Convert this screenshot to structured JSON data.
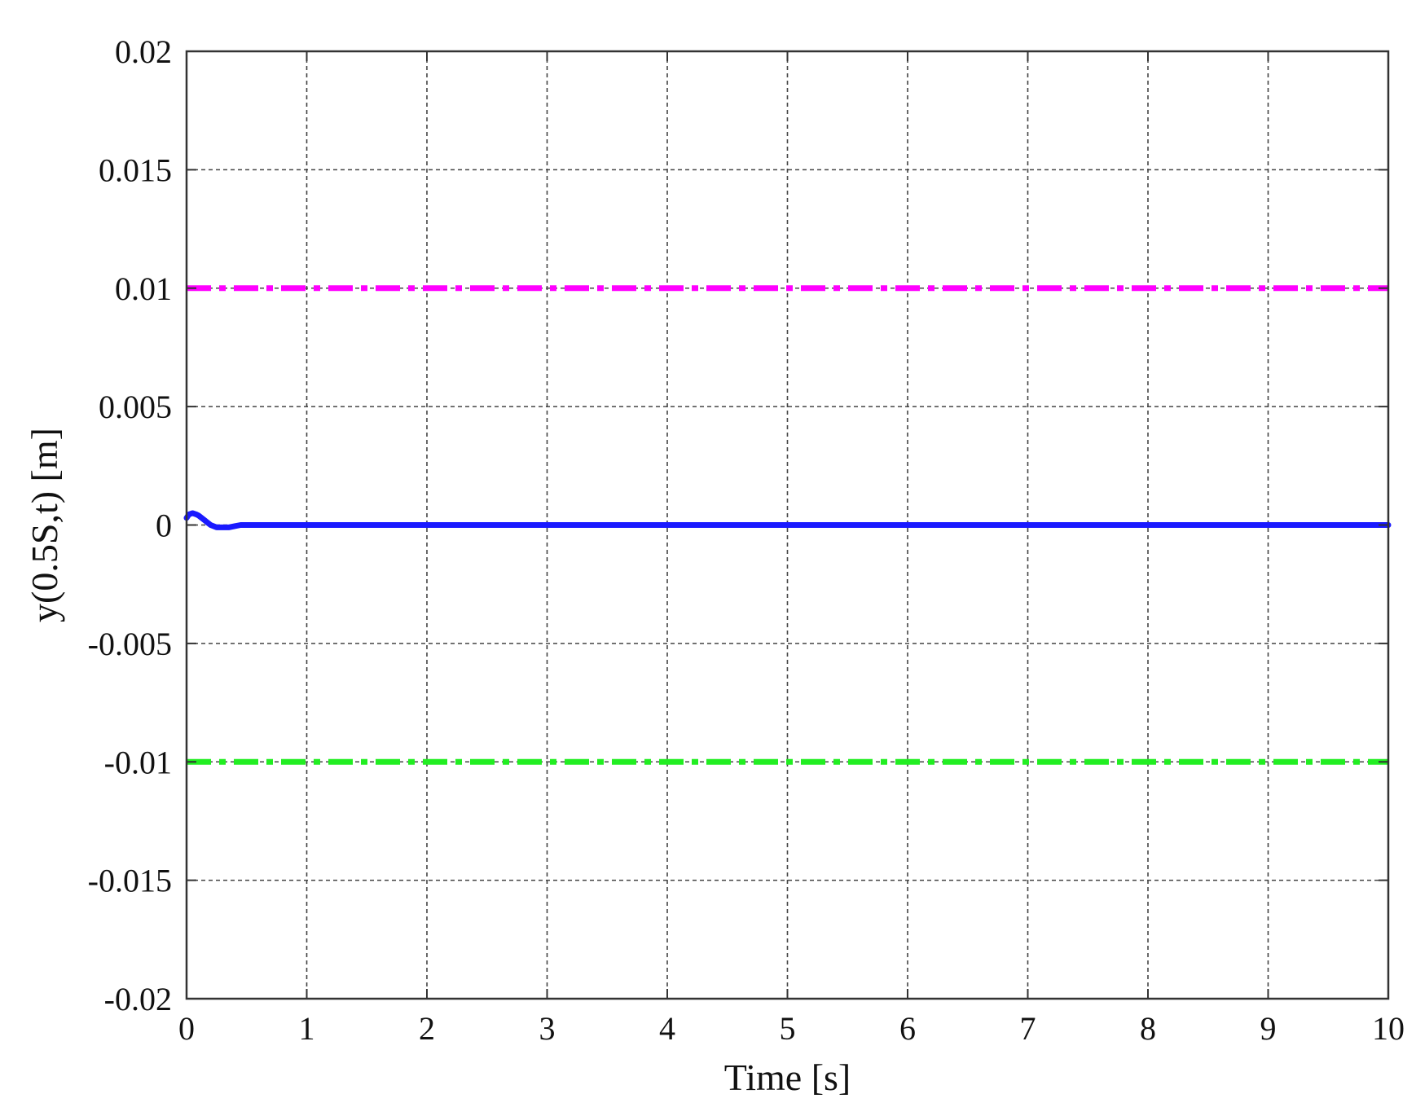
{
  "chart_data": {
    "type": "line",
    "xlabel": "Time [s]",
    "ylabel": "y(0.5S,t) [m]",
    "xlim": [
      0,
      10
    ],
    "ylim": [
      -0.02,
      0.02
    ],
    "xticks": [
      0,
      1,
      2,
      3,
      4,
      5,
      6,
      7,
      8,
      9,
      10
    ],
    "xtick_labels": [
      "0",
      "1",
      "2",
      "3",
      "4",
      "5",
      "6",
      "7",
      "8",
      "9",
      "10"
    ],
    "yticks": [
      0.02,
      0.015,
      0.01,
      0.005,
      0,
      -0.005,
      -0.01,
      -0.015,
      -0.02
    ],
    "ytick_labels": [
      "0.02",
      "0.015",
      "0.01",
      "0.005",
      "0",
      "-0.005",
      "-0.01",
      "-0.015",
      "-0.02"
    ],
    "grid": true,
    "series": [
      {
        "style": "solid",
        "color": "#1a1aff",
        "x": [
          0,
          0.02,
          0.05,
          0.08,
          0.1,
          0.15,
          0.2,
          0.25,
          0.3,
          0.35,
          0.4,
          0.45,
          0.5,
          0.6,
          0.8,
          1,
          2,
          3,
          4,
          5,
          6,
          7,
          8,
          9,
          10
        ],
        "y": [
          0.0003,
          0.00045,
          0.0005,
          0.00045,
          0.0004,
          0.0002,
          0.0,
          -0.0001,
          -0.0001,
          -0.0001,
          -5e-05,
          0.0,
          0.0,
          0.0,
          0.0,
          0.0,
          0.0,
          0.0,
          0.0,
          0.0,
          0.0,
          0.0,
          0.0,
          0.0,
          0.0
        ]
      },
      {
        "style": "dashdot",
        "color": "#ff00ff",
        "x": [
          0,
          10
        ],
        "y": [
          0.01,
          0.01
        ]
      },
      {
        "style": "dashdot",
        "color": "#22ee22",
        "x": [
          0,
          10
        ],
        "y": [
          -0.01,
          -0.01
        ]
      }
    ]
  }
}
